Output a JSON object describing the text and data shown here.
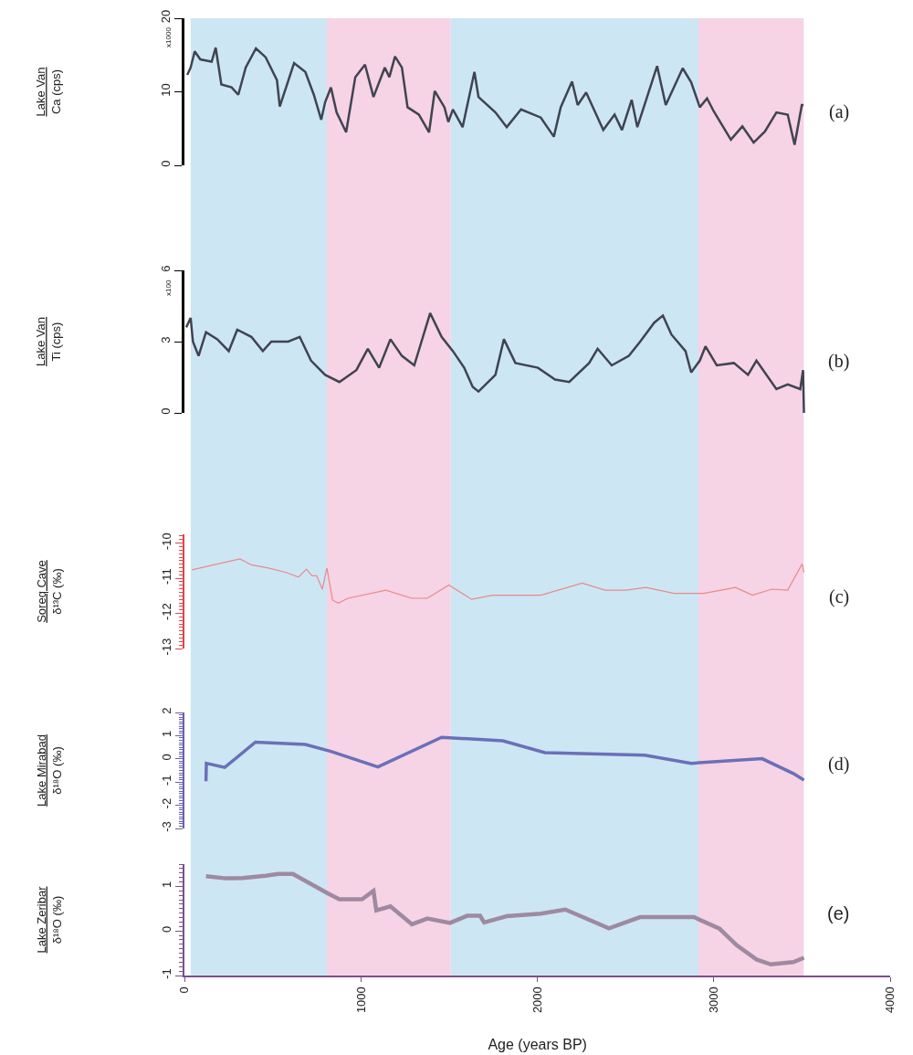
{
  "chart_data": [
    {
      "type": "line",
      "ylabel": "Lake Van\nCa (cps)",
      "annotations": [
        "x1000",
        "(a)"
      ],
      "xlim": [
        0,
        4000
      ],
      "xticks": [
        0,
        1000,
        2000,
        3000,
        4000
      ],
      "ylim": [
        0,
        20
      ],
      "yticks": [
        0,
        10,
        20
      ],
      "tick_labels": "y",
      "bands": [
        {
          "axis": "x",
          "from": 35,
          "to": 807,
          "color": "#cde6f4"
        },
        {
          "axis": "x",
          "from": 807,
          "to": 1509,
          "color": "#f6d3e5"
        },
        {
          "axis": "x",
          "from": 1509,
          "to": 2912,
          "color": "#cde6f4"
        },
        {
          "axis": "x",
          "from": 2912,
          "to": 3509,
          "color": "#f6d3e5"
        }
      ],
      "x": [
        16,
        35,
        58,
        90,
        154,
        177,
        209,
        267,
        305,
        347,
        405,
        460,
        524,
        540,
        621,
        685,
        733,
        775,
        797,
        830,
        862,
        916,
        968,
        1023,
        1071,
        1135,
        1161,
        1193,
        1232,
        1264,
        1328,
        1386,
        1418,
        1473,
        1495,
        1521,
        1576,
        1643,
        1666,
        1762,
        1826,
        1907,
        2019,
        2093,
        2132,
        2196,
        2228,
        2276,
        2373,
        2437,
        2479,
        2534,
        2566,
        2678,
        2727,
        2823,
        2871,
        2920,
        2961,
        3000,
        3096,
        3161,
        3225,
        3289,
        3354,
        3418,
        3457,
        3498,
        3508
      ],
      "series": [
        {
          "color": "#3f4450",
          "values": [
            12.3,
            13.3,
            15.5,
            14.4,
            14.1,
            16,
            11,
            10.6,
            9.6,
            13.3,
            15.9,
            14.7,
            11.6,
            8.0,
            13.9,
            12.7,
            9.6,
            6.2,
            8.6,
            10.6,
            7.2,
            4.5,
            12.0,
            13.7,
            9.3,
            13.3,
            12.0,
            14.8,
            13.3,
            7.9,
            6.9,
            4.5,
            10.1,
            7.9,
            5.9,
            7.6,
            5.2,
            12.7,
            9.3,
            7.2,
            5.2,
            7.6,
            6.5,
            3.9,
            7.9,
            11.4,
            8.2,
            9.9,
            4.8,
            6.9,
            4.8,
            8.9,
            5.2,
            13.5,
            8.2,
            13.2,
            11.3,
            7.9,
            9.1,
            7.3,
            3.5,
            5.3,
            3.1,
            4.6,
            7.2,
            6.9,
            2.8,
            8.2,
            8.2
          ]
        }
      ]
    },
    {
      "type": "line",
      "ylabel": "Lake Van\nTi (cps)",
      "annotations": [
        "x100",
        "(b)"
      ],
      "xlim": [
        0,
        4000
      ],
      "xticks": [
        0,
        1000,
        2000,
        3000,
        4000
      ],
      "ylim": [
        0,
        6
      ],
      "yticks": [
        0,
        3,
        6
      ],
      "tick_labels": "y",
      "bands": [
        {
          "axis": "x",
          "from": 35,
          "to": 807,
          "color": "#cde6f4"
        },
        {
          "axis": "x",
          "from": 807,
          "to": 1509,
          "color": "#f6d3e5"
        },
        {
          "axis": "x",
          "from": 1509,
          "to": 2912,
          "color": "#cde6f4"
        },
        {
          "axis": "x",
          "from": 2912,
          "to": 3509,
          "color": "#f6d3e5"
        }
      ],
      "x": [
        10,
        35,
        48,
        80,
        122,
        186,
        251,
        299,
        379,
        444,
        492,
        588,
        653,
        717,
        797,
        878,
        974,
        1039,
        1103,
        1167,
        1232,
        1302,
        1392,
        1457,
        1521,
        1585,
        1633,
        1666,
        1762,
        1810,
        1875,
        2003,
        2100,
        2180,
        2293,
        2341,
        2421,
        2518,
        2582,
        2662,
        2711,
        2759,
        2839,
        2871,
        2920,
        2952,
        3016,
        3113,
        3193,
        3241,
        3354,
        3418,
        3489,
        3505,
        3510
      ],
      "series": [
        {
          "color": "#3f4450",
          "values": [
            3.6,
            4.0,
            3.0,
            2.4,
            3.4,
            3.1,
            2.6,
            3.5,
            3.2,
            2.6,
            3.0,
            3.0,
            3.2,
            2.2,
            1.6,
            1.3,
            1.8,
            2.7,
            1.9,
            3.1,
            2.4,
            2.0,
            4.2,
            3.2,
            2.6,
            1.9,
            1.1,
            0.9,
            1.6,
            3.1,
            2.1,
            1.9,
            1.4,
            1.3,
            2.1,
            2.7,
            2.0,
            2.4,
            3.0,
            3.8,
            4.1,
            3.3,
            2.6,
            1.7,
            2.2,
            2.8,
            2.0,
            2.1,
            1.6,
            2.2,
            1.0,
            1.2,
            1.0,
            1.8,
            0
          ]
        }
      ]
    },
    {
      "type": "line",
      "ylabel": "Soreq Cave\nδ¹³C (‰)",
      "annotations": [
        "(c)"
      ],
      "xlim": [
        0,
        4000
      ],
      "xticks": [
        0,
        1000,
        2000,
        3000,
        4000
      ],
      "ylim": [
        -13,
        -9.75
      ],
      "yticks": [
        -13,
        -12,
        -11,
        -10
      ],
      "tick_labels": "y",
      "bands": [
        {
          "axis": "x",
          "from": 35,
          "to": 807,
          "color": "#cde6f4"
        },
        {
          "axis": "x",
          "from": 807,
          "to": 1509,
          "color": "#f6d3e5"
        },
        {
          "axis": "x",
          "from": 1509,
          "to": 2912,
          "color": "#cde6f4"
        },
        {
          "axis": "x",
          "from": 2912,
          "to": 3509,
          "color": "#f6d3e5"
        }
      ],
      "x": [
        42,
        315,
        379,
        476,
        572,
        646,
        691,
        723,
        749,
        781,
        807,
        839,
        871,
        926,
        1141,
        1289,
        1376,
        1498,
        1627,
        1746,
        2019,
        2254,
        2383,
        2502,
        2614,
        2775,
        2942,
        3122,
        3219,
        3328,
        3418,
        3500,
        3510
      ],
      "series": [
        {
          "color": "#e88a8a",
          "values": [
            -10.76,
            -10.45,
            -10.62,
            -10.71,
            -10.83,
            -10.97,
            -10.74,
            -10.93,
            -10.93,
            -11.31,
            -10.71,
            -11.62,
            -11.71,
            -11.57,
            -11.34,
            -11.57,
            -11.57,
            -11.19,
            -11.6,
            -11.48,
            -11.48,
            -11.14,
            -11.34,
            -11.34,
            -11.26,
            -11.43,
            -11.43,
            -11.26,
            -11.48,
            -11.31,
            -11.34,
            -10.59,
            -10.83
          ]
        }
      ]
    },
    {
      "type": "line",
      "ylabel": "Lake Mirabad\nδ¹⁸O (‰)",
      "annotations": [
        "(d)"
      ],
      "xlim": [
        0,
        4000
      ],
      "xticks": [
        0,
        1000,
        2000,
        3000,
        4000
      ],
      "ylim": [
        -3,
        2
      ],
      "yticks": [
        -3,
        -2,
        -1,
        0,
        1,
        2
      ],
      "tick_labels": "y",
      "bands": [
        {
          "axis": "x",
          "from": 35,
          "to": 807,
          "color": "#cde6f4"
        },
        {
          "axis": "x",
          "from": 807,
          "to": 1509,
          "color": "#f6d3e5"
        },
        {
          "axis": "x",
          "from": 1509,
          "to": 2912,
          "color": "#cde6f4"
        },
        {
          "axis": "x",
          "from": 2912,
          "to": 3509,
          "color": "#f6d3e5"
        }
      ],
      "x": [
        122,
        124,
        228,
        402,
        685,
        830,
        1096,
        1457,
        1804,
        2042,
        2608,
        2871,
        3273,
        3450,
        3510
      ],
      "series": [
        {
          "color": "#6a70b8",
          "values": [
            -0.96,
            -0.19,
            -0.37,
            0.72,
            0.62,
            0.32,
            -0.35,
            0.93,
            0.78,
            0.27,
            0.16,
            -0.19,
            0.01,
            -0.63,
            -0.91
          ]
        }
      ]
    },
    {
      "type": "line",
      "ylabel": "Lake Zeribar\nδ¹⁸O (‰)",
      "xlabel": "Age (years BP)",
      "annotations": [
        "(e)"
      ],
      "xlim": [
        0,
        4000
      ],
      "xticks": [
        0,
        1000,
        2000,
        3000,
        4000
      ],
      "ylim": [
        -1,
        1.5
      ],
      "yticks": [
        -1,
        0,
        1
      ],
      "bands": [
        {
          "axis": "x",
          "from": 35,
          "to": 807,
          "color": "#cde6f4"
        },
        {
          "axis": "x",
          "from": 807,
          "to": 1509,
          "color": "#f6d3e5"
        },
        {
          "axis": "x",
          "from": 1509,
          "to": 2912,
          "color": "#cde6f4"
        },
        {
          "axis": "x",
          "from": 2912,
          "to": 3509,
          "color": "#f6d3e5"
        }
      ],
      "x": [
        122,
        235,
        331,
        460,
        531,
        614,
        814,
        878,
        1006,
        1071,
        1087,
        1167,
        1289,
        1376,
        1505,
        1601,
        1675,
        1698,
        1778,
        1826,
        2019,
        2158,
        2405,
        2582,
        2887,
        3032,
        3129,
        3241,
        3322,
        3450,
        3510
      ],
      "series": [
        {
          "color": "#9e8aa0",
          "values": [
            1.23,
            1.18,
            1.19,
            1.24,
            1.28,
            1.28,
            0.84,
            0.71,
            0.71,
            0.9,
            0.46,
            0.55,
            0.15,
            0.28,
            0.18,
            0.34,
            0.34,
            0.19,
            0.28,
            0.33,
            0.39,
            0.48,
            0.06,
            0.31,
            0.31,
            0.05,
            -0.32,
            -0.64,
            -0.75,
            -0.7,
            -0.6
          ]
        }
      ]
    }
  ]
}
